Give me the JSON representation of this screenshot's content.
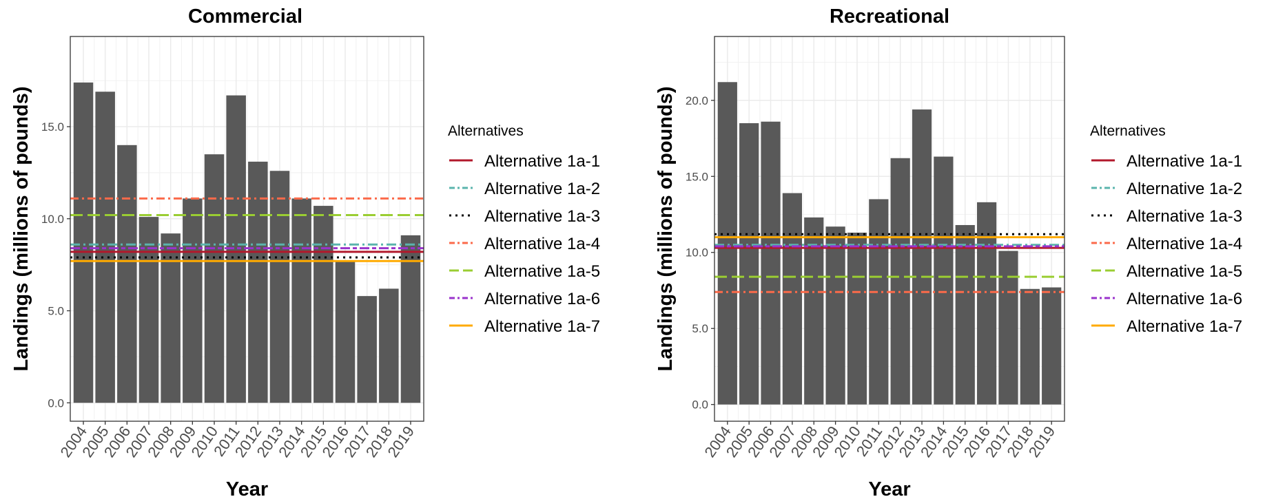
{
  "chart_data": [
    {
      "type": "bar",
      "title": "Commercial",
      "xlabel": "Year",
      "ylabel": "Landings (millions of pounds)",
      "categories": [
        "2004",
        "2005",
        "2006",
        "2007",
        "2008",
        "2009",
        "2010",
        "2011",
        "2012",
        "2013",
        "2014",
        "2015",
        "2016",
        "2017",
        "2018",
        "2019"
      ],
      "values": [
        17.4,
        16.9,
        14.0,
        10.1,
        9.2,
        11.1,
        13.5,
        16.7,
        13.1,
        12.6,
        11.1,
        10.7,
        7.7,
        5.8,
        6.2,
        9.1
      ],
      "yticks": [
        0.0,
        5.0,
        10.0,
        15.0
      ],
      "ytick_labels": [
        "0.0",
        "5.0",
        "10.0",
        "15.0"
      ],
      "ylim": [
        -1.0,
        19.9
      ],
      "bar_color": "#595959",
      "grid": true,
      "reference_lines": [
        {
          "name": "Alternative 1a-1",
          "value": 8.2,
          "color": "#b2182b",
          "dash": "solid"
        },
        {
          "name": "Alternative 1a-2",
          "value": 8.6,
          "color": "#5ab4ac",
          "dash": "dashdot"
        },
        {
          "name": "Alternative 1a-3",
          "value": 7.9,
          "color": "#000000",
          "dash": "dotted"
        },
        {
          "name": "Alternative 1a-4",
          "value": 11.1,
          "color": "#fb6a4a",
          "dash": "dotdash"
        },
        {
          "name": "Alternative 1a-5",
          "value": 10.2,
          "color": "#9acd32",
          "dash": "longdash"
        },
        {
          "name": "Alternative 1a-6",
          "value": 8.4,
          "color": "#9932cc",
          "dash": "twodash"
        },
        {
          "name": "Alternative 1a-7",
          "value": 7.7,
          "color": "#ffaa00",
          "dash": "solid"
        }
      ],
      "legend": {
        "title": "Alternatives",
        "placement": "right"
      }
    },
    {
      "type": "bar",
      "title": "Recreational",
      "xlabel": "Year",
      "ylabel": "Landings (millions of pounds)",
      "categories": [
        "2004",
        "2005",
        "2006",
        "2007",
        "2008",
        "2009",
        "2010",
        "2011",
        "2012",
        "2013",
        "2014",
        "2015",
        "2016",
        "2017",
        "2018",
        "2019"
      ],
      "values": [
        21.2,
        18.5,
        18.6,
        13.9,
        12.3,
        11.7,
        11.3,
        13.5,
        16.2,
        19.4,
        16.3,
        11.8,
        13.3,
        10.1,
        7.6,
        7.7
      ],
      "yticks": [
        0.0,
        5.0,
        10.0,
        15.0,
        20.0
      ],
      "ytick_labels": [
        "0.0",
        "5.0",
        "10.0",
        "15.0",
        "20.0"
      ],
      "ylim": [
        -1.1,
        24.2
      ],
      "bar_color": "#595959",
      "grid": true,
      "reference_lines": [
        {
          "name": "Alternative 1a-1",
          "value": 10.3,
          "color": "#b2182b",
          "dash": "solid"
        },
        {
          "name": "Alternative 1a-2",
          "value": 10.5,
          "color": "#5ab4ac",
          "dash": "dashdot"
        },
        {
          "name": "Alternative 1a-3",
          "value": 11.2,
          "color": "#000000",
          "dash": "dotted"
        },
        {
          "name": "Alternative 1a-4",
          "value": 7.4,
          "color": "#fb6a4a",
          "dash": "dotdash"
        },
        {
          "name": "Alternative 1a-5",
          "value": 8.4,
          "color": "#9acd32",
          "dash": "longdash"
        },
        {
          "name": "Alternative 1a-6",
          "value": 10.4,
          "color": "#9932cc",
          "dash": "twodash"
        },
        {
          "name": "Alternative 1a-7",
          "value": 11.0,
          "color": "#ffaa00",
          "dash": "solid"
        }
      ],
      "legend": {
        "title": "Alternatives",
        "placement": "right"
      }
    }
  ]
}
